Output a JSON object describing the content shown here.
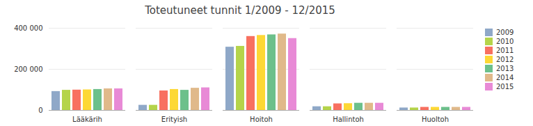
{
  "chart_data": {
    "type": "bar",
    "title": "Toteutuneet tunnit 1/2009 - 12/2015",
    "categories": [
      "Lääkärih",
      "Erityish",
      "Hoitoh",
      "Hallintoh",
      "Huoltoh"
    ],
    "series": [
      {
        "name": "2009",
        "color": "#8fa8c8",
        "values": [
          92000,
          25000,
          308000,
          18000,
          12000
        ]
      },
      {
        "name": "2010",
        "color": "#b5d44a",
        "values": [
          98000,
          25000,
          312000,
          18000,
          12000
        ]
      },
      {
        "name": "2011",
        "color": "#f87060",
        "values": [
          99000,
          95000,
          360000,
          32000,
          15000
        ]
      },
      {
        "name": "2012",
        "color": "#fdd835",
        "values": [
          100000,
          102000,
          365000,
          33000,
          15000
        ]
      },
      {
        "name": "2013",
        "color": "#6cc08b",
        "values": [
          102000,
          98000,
          368000,
          35000,
          15000
        ]
      },
      {
        "name": "2014",
        "color": "#e0b98a",
        "values": [
          105000,
          108000,
          372000,
          35000,
          15000
        ]
      },
      {
        "name": "2015",
        "color": "#e88ad6",
        "values": [
          105000,
          110000,
          350000,
          35000,
          15000
        ]
      }
    ],
    "ylim": [
      0,
      400000
    ],
    "yticks": [
      0,
      {
        "value": 200000,
        "label": "200 000"
      },
      {
        "value": 400000,
        "label": "400 000"
      }
    ],
    "grid": true,
    "legend": "right"
  }
}
